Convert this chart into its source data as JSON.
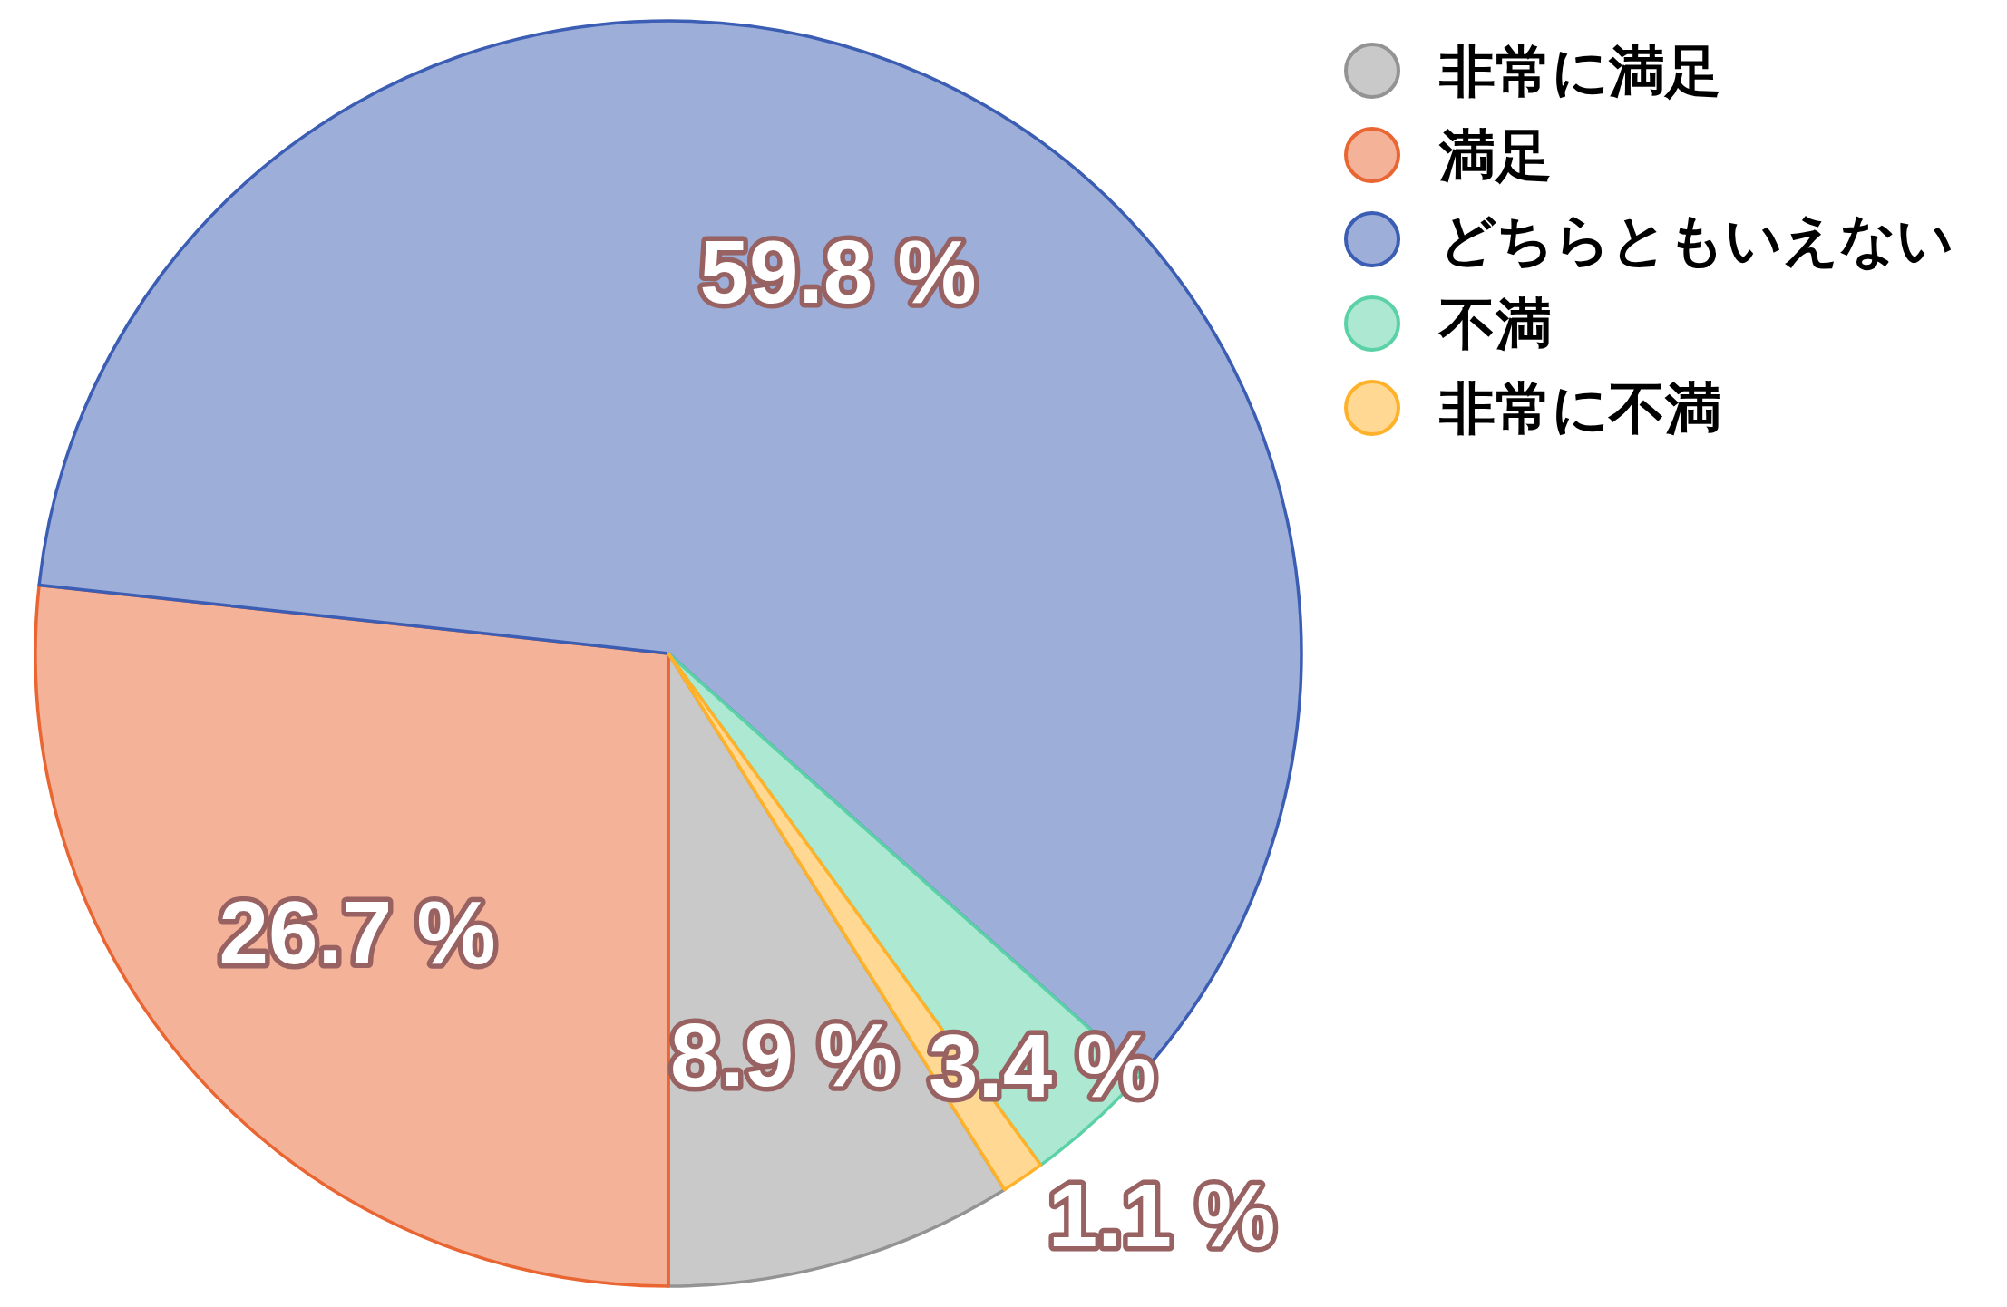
{
  "chart_data": {
    "type": "pie",
    "categories": [
      "非常に満足",
      "満足",
      "どちらともいえない",
      "不満",
      "非常に不満"
    ],
    "values": [
      8.9,
      26.7,
      59.8,
      3.4,
      1.1
    ],
    "colors": [
      "#c9c9c9",
      "#f4b298",
      "#9daed9",
      "#ade8d3",
      "#ffd894"
    ],
    "value_labels": [
      "8.9 %",
      "26.7 %",
      "59.8 %",
      "3.4 %",
      "1.1 %"
    ],
    "legend": "top right"
  }
}
